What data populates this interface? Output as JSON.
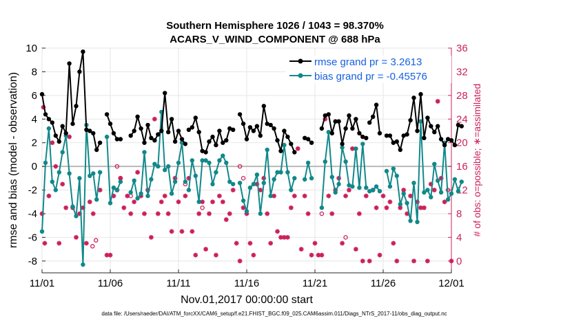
{
  "chart_data": {
    "type": "line",
    "title": "Southern Hemisphere 1026 / 1043 = 98.370%",
    "subtitle": "ACARS_V_WIND_COMPONENT @ 688 hPa",
    "xlabel": "Nov.01,2017 00:00:00 start",
    "ylabel": "rmse and bias (model - observation)",
    "ylabel_right": "# of obs: o=possible; ∗=assimilated",
    "footer": "data file: /Users/raeder/DAI/ATM_forcXX/CAM6_setup/f.e21.FHIST_BGC.f09_025.CAM6assim.011/Diags_NTrS_2017-11/obs_diag_output.nc",
    "x_ticks": [
      "11/01",
      "11/06",
      "11/11",
      "11/16",
      "11/21",
      "11/26",
      "12/01"
    ],
    "x_range_days": [
      0,
      30
    ],
    "ylim": [
      -9,
      10
    ],
    "y_ticks": [
      -8,
      -6,
      -4,
      -2,
      0,
      2,
      4,
      6,
      8,
      10
    ],
    "ylim_right": [
      -2,
      36
    ],
    "y_ticks_right": [
      0,
      4,
      8,
      12,
      16,
      20,
      24,
      28,
      32,
      36
    ],
    "legend_position": "top-right",
    "series": [
      {
        "name": "rmse grand pr = 3.2613",
        "color": "#000000",
        "marker": "circle",
        "segments": [
          {
            "x0": 0,
            "dx": 0.25,
            "values": [
              6.1,
              4.4,
              4.0,
              3.7,
              2.6,
              2.1,
              3.4,
              2.8,
              8.7,
              3.6,
              5.1,
              8.0,
              9.7,
              3.1,
              3.0,
              2.8,
              1.4,
              2.0
            ]
          },
          {
            "x0": 4.75,
            "dx": 0.25,
            "values": [
              4.4,
              3.6,
              2.8,
              2.3,
              2.3
            ]
          },
          {
            "x0": 6.5,
            "dx": 0.25,
            "values": [
              2.6,
              3.0,
              4.2,
              3.2,
              2.0,
              3.5,
              2.4,
              2.2,
              2.7,
              3.0,
              6.2,
              2.9,
              4.0,
              2.1,
              3.0,
              2.3,
              1.9
            ]
          },
          {
            "x0": 10.75,
            "dx": 0.25,
            "values": [
              3.1,
              3.3,
              4.1,
              2.9,
              1.3,
              1.2,
              2.1,
              2.5,
              1.8,
              3.0,
              2.0,
              2.2,
              3.2,
              3.1
            ]
          },
          {
            "x0": 14.5,
            "dx": 0.25,
            "values": [
              4.4,
              3.6,
              2.3,
              3.3,
              3.0,
              3.4,
              2.6,
              5.1,
              3.6,
              3.5,
              3.2,
              2.2,
              1.3,
              3.0,
              2.5,
              1.9,
              1.2
            ]
          },
          {
            "x0": 19.25,
            "dx": 0.25,
            "values": [
              2.4,
              2.3,
              2.0
            ]
          },
          {
            "x0": 20.5,
            "dx": 0.25,
            "values": [
              3.2,
              4.3,
              4.4,
              2.8,
              3.8,
              3.8,
              1.9,
              3.2,
              4.3,
              3.2,
              4.0,
              2.8,
              2.5,
              2.4
            ]
          },
          {
            "x0": 24.0,
            "dx": 0.25,
            "values": [
              3.7,
              4.2,
              5.2,
              2.8
            ]
          },
          {
            "x0": 25.25,
            "dx": 0.25,
            "values": [
              2.6,
              2.6,
              2.0,
              2.1,
              1.4,
              2.6,
              2.7,
              3.9,
              5.8,
              3.0,
              6.1,
              2.4,
              4.1,
              3.4,
              2.9,
              3.4,
              2.3,
              1.8,
              2.3,
              2.2,
              1.8,
              3.5,
              3.4
            ]
          }
        ]
      },
      {
        "name": "bias grand pr = -0.45576",
        "color": "#11888a",
        "marker": "circle",
        "segments": [
          {
            "x0": 0,
            "dx": 0.25,
            "values": [
              -5.5,
              0.3,
              3.2,
              -1.3,
              -2.0,
              -0.5,
              1.2,
              2.6,
              -0.6,
              -3.4,
              -4.2,
              -1.0,
              -8.3,
              3.5,
              -0.8,
              -0.6,
              -2.8,
              -0.5
            ]
          },
          {
            "x0": 4.75,
            "dx": 0.25,
            "values": [
              2.5,
              -3.1,
              -1.8,
              -2.0,
              -1.3
            ]
          },
          {
            "x0": 6.5,
            "dx": 0.25,
            "values": [
              -2.2,
              -1.2,
              -2.7,
              -2.3,
              1.2,
              -2.5,
              -1.1,
              0.2,
              0.0,
              4.6,
              -0.3,
              0.0,
              -2.3,
              -1.3,
              0.3,
              2.0,
              -1.3
            ]
          },
          {
            "x0": 10.75,
            "dx": 0.25,
            "values": [
              -2.0,
              0.5,
              -0.8,
              -3.0,
              0.5,
              0.5,
              0.3,
              -1.5,
              -0.5,
              0.5,
              0.9,
              0.3,
              -1.3,
              -1.5
            ]
          },
          {
            "x0": 14.5,
            "dx": 0.25,
            "values": [
              -1.4,
              -2.9,
              -3.8,
              -1.8,
              -1.5,
              -0.7,
              -4.0,
              -1.4,
              1.4,
              -2.5,
              -1.1,
              -0.5,
              -0.5,
              1.8,
              -0.5,
              -2.0,
              -1.0
            ]
          },
          {
            "x0": 19.25,
            "dx": 0.25,
            "values": [
              -1.1,
              0.3,
              -1.0
            ]
          },
          {
            "x0": 20.5,
            "dx": 0.25,
            "values": [
              -3.5,
              0.4,
              2.9,
              -0.9,
              -2.2,
              -1.5,
              1.6,
              0.4,
              -1.6,
              -1.7,
              1.5,
              -1.8,
              1.9,
              -1.8
            ]
          },
          {
            "x0": 24.0,
            "dx": 0.25,
            "values": [
              -2.1,
              -2.0,
              -1.7,
              -2.1
            ]
          },
          {
            "x0": 25.25,
            "dx": 0.25,
            "values": [
              -0.4,
              -1.7,
              -0.2,
              -0.8,
              -3.2,
              -2.3,
              -3.1,
              -4.6,
              -1.4,
              -4.7,
              3.8,
              -2.2,
              -2.0,
              -2.6,
              0.2,
              -1.2,
              -2.2,
              2.0,
              -2.8,
              -2.3,
              -1.1,
              -2.1,
              -1.3
            ]
          }
        ]
      }
    ],
    "obs_assimilated_right_axis": [
      {
        "x": 0.0,
        "y": 8.0
      },
      {
        "x": 0.1,
        "y": 26.0
      },
      {
        "x": 0.2,
        "y": 3.0
      },
      {
        "x": 0.5,
        "y": 11.0
      },
      {
        "x": 0.75,
        "y": 20.0
      },
      {
        "x": 1.0,
        "y": 16.0
      },
      {
        "x": 1.25,
        "y": 3.0
      },
      {
        "x": 1.5,
        "y": 13.0
      },
      {
        "x": 1.75,
        "y": 9.0
      },
      {
        "x": 2.0,
        "y": 21.0
      },
      {
        "x": 2.25,
        "y": 9.0
      },
      {
        "x": 2.5,
        "y": 4.0
      },
      {
        "x": 2.75,
        "y": 8.0
      },
      {
        "x": 3.0,
        "y": 9.0
      },
      {
        "x": 3.25,
        "y": 3.0
      },
      {
        "x": 3.5,
        "y": 10.0
      },
      {
        "x": 3.75,
        "y": 8.0
      },
      {
        "x": 4.25,
        "y": 12.0
      },
      {
        "x": 4.75,
        "y": 1.0
      },
      {
        "x": 5.0,
        "y": 1.0
      },
      {
        "x": 5.25,
        "y": 11.0
      },
      {
        "x": 5.5,
        "y": 12.0
      },
      {
        "x": 5.75,
        "y": 14.0
      },
      {
        "x": 6.0,
        "y": 9.0
      },
      {
        "x": 6.25,
        "y": 11.0
      },
      {
        "x": 6.5,
        "y": 8.0
      },
      {
        "x": 6.75,
        "y": 10.0
      },
      {
        "x": 7.0,
        "y": 15.0
      },
      {
        "x": 7.25,
        "y": 11.0
      },
      {
        "x": 7.5,
        "y": 8.0
      },
      {
        "x": 7.75,
        "y": 12.0
      },
      {
        "x": 8.0,
        "y": 4.0
      },
      {
        "x": 8.25,
        "y": 24.0
      },
      {
        "x": 8.5,
        "y": 8.0
      },
      {
        "x": 8.75,
        "y": 10.0
      },
      {
        "x": 9.0,
        "y": 11.0
      },
      {
        "x": 9.25,
        "y": 8.0
      },
      {
        "x": 9.5,
        "y": 5.0
      },
      {
        "x": 9.75,
        "y": 14.0
      },
      {
        "x": 10.0,
        "y": 10.0
      },
      {
        "x": 10.25,
        "y": 5.0
      },
      {
        "x": 10.5,
        "y": 11.0
      },
      {
        "x": 10.75,
        "y": 14.0
      },
      {
        "x": 11.0,
        "y": 5.0
      },
      {
        "x": 11.25,
        "y": 1.0
      },
      {
        "x": 11.5,
        "y": 8.0
      },
      {
        "x": 11.75,
        "y": 10.0
      },
      {
        "x": 12.0,
        "y": 2.0
      },
      {
        "x": 12.25,
        "y": 8.0
      },
      {
        "x": 12.5,
        "y": 10.0
      },
      {
        "x": 12.75,
        "y": 1.0
      },
      {
        "x": 13.0,
        "y": 11.0
      },
      {
        "x": 13.25,
        "y": 10.0
      },
      {
        "x": 13.5,
        "y": 7.0
      },
      {
        "x": 13.75,
        "y": 8.0
      },
      {
        "x": 14.0,
        "y": 12.0
      },
      {
        "x": 14.25,
        "y": 3.0
      },
      {
        "x": 14.5,
        "y": 0.0
      },
      {
        "x": 14.75,
        "y": 9.0
      },
      {
        "x": 15.0,
        "y": 8.0
      },
      {
        "x": 15.25,
        "y": 3.0
      },
      {
        "x": 15.5,
        "y": 1.0
      },
      {
        "x": 15.75,
        "y": 13.0
      },
      {
        "x": 16.0,
        "y": 12.0
      },
      {
        "x": 16.25,
        "y": 14.0
      },
      {
        "x": 16.5,
        "y": 8.0
      },
      {
        "x": 16.75,
        "y": 3.0
      },
      {
        "x": 17.0,
        "y": 11.0
      },
      {
        "x": 17.25,
        "y": 5.0
      },
      {
        "x": 17.5,
        "y": 4.0
      },
      {
        "x": 17.75,
        "y": 4.0
      },
      {
        "x": 18.0,
        "y": 4.0
      },
      {
        "x": 18.25,
        "y": 9.0
      },
      {
        "x": 18.5,
        "y": 11.0
      },
      {
        "x": 18.75,
        "y": 19.0
      },
      {
        "x": 19.0,
        "y": 2.0
      },
      {
        "x": 19.25,
        "y": 11.0
      },
      {
        "x": 19.5,
        "y": 8.0
      },
      {
        "x": 19.75,
        "y": 1.0
      },
      {
        "x": 20.0,
        "y": 3.0
      },
      {
        "x": 20.25,
        "y": 1.0
      },
      {
        "x": 20.5,
        "y": 1.0
      },
      {
        "x": 20.75,
        "y": 24.0
      },
      {
        "x": 21.0,
        "y": 11.0
      },
      {
        "x": 21.25,
        "y": 8.0
      },
      {
        "x": 21.5,
        "y": 12.0
      },
      {
        "x": 21.75,
        "y": 14.0
      },
      {
        "x": 22.0,
        "y": 3.0
      },
      {
        "x": 22.25,
        "y": 11.0
      },
      {
        "x": 22.5,
        "y": 12.0
      },
      {
        "x": 22.75,
        "y": 19.0
      },
      {
        "x": 23.0,
        "y": 2.0
      },
      {
        "x": 23.25,
        "y": 8.0
      },
      {
        "x": 23.5,
        "y": 0.0
      },
      {
        "x": 23.75,
        "y": 11.0
      },
      {
        "x": 24.0,
        "y": 0.0
      },
      {
        "x": 24.25,
        "y": 12.0
      },
      {
        "x": 24.5,
        "y": 9.0
      },
      {
        "x": 24.75,
        "y": 1.0
      },
      {
        "x": 25.0,
        "y": 11.0
      },
      {
        "x": 25.25,
        "y": 9.0
      },
      {
        "x": 25.5,
        "y": 10.0
      },
      {
        "x": 25.75,
        "y": 3.0
      },
      {
        "x": 26.0,
        "y": 0.0
      },
      {
        "x": 26.25,
        "y": 9.0
      },
      {
        "x": 26.5,
        "y": 12.0
      },
      {
        "x": 26.75,
        "y": 8.0
      },
      {
        "x": 27.0,
        "y": 11.0
      },
      {
        "x": 27.25,
        "y": 0.0
      },
      {
        "x": 27.5,
        "y": 10.0
      },
      {
        "x": 27.75,
        "y": 9.0
      },
      {
        "x": 28.0,
        "y": 9.0
      },
      {
        "x": 28.25,
        "y": 0.0
      },
      {
        "x": 28.5,
        "y": 13.0
      },
      {
        "x": 28.75,
        "y": 12.0
      },
      {
        "x": 29.0,
        "y": 27.0
      },
      {
        "x": 29.25,
        "y": 14.0
      },
      {
        "x": 29.5,
        "y": 10.0
      },
      {
        "x": 30.0,
        "y": 0.0
      }
    ],
    "obs_possible_right_axis": [
      {
        "x": 3.7,
        "y": 2.5
      },
      {
        "x": 3.95,
        "y": 3.5
      },
      {
        "x": 5.5,
        "y": 16.0
      },
      {
        "x": 5.75,
        "y": 14.0
      },
      {
        "x": 6.5,
        "y": 11.0
      },
      {
        "x": 10.5,
        "y": 13.0
      },
      {
        "x": 11.75,
        "y": 9.0
      },
      {
        "x": 14.5,
        "y": 16.0
      },
      {
        "x": 14.75,
        "y": 14.0
      },
      {
        "x": 20.5,
        "y": 8.0
      },
      {
        "x": 22.25,
        "y": 4.0
      },
      {
        "x": 29.75,
        "y": 12.0
      }
    ]
  }
}
